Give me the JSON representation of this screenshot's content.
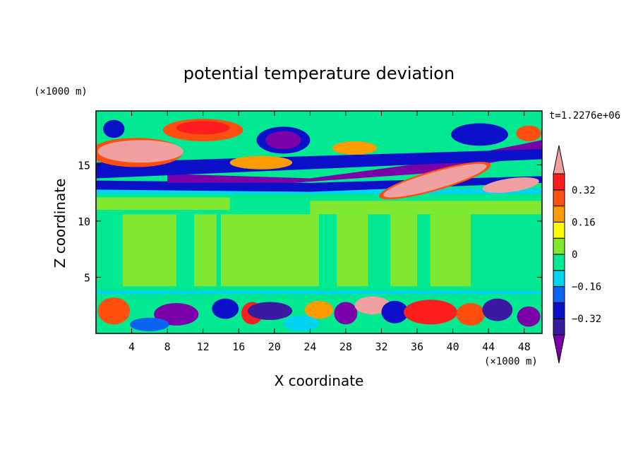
{
  "chart_data": {
    "type": "heatmap",
    "title": "potential temperature deviation",
    "xlabel": "X coordinate",
    "ylabel": "Z coordinate",
    "x_unit": "(×1000 m)",
    "y_unit": "(×1000 m)",
    "time_label": "t=1.2276e+06",
    "xlim": [
      0,
      50
    ],
    "ylim": [
      0,
      19.8
    ],
    "x_ticks": [
      "4",
      "8",
      "12",
      "16",
      "20",
      "24",
      "28",
      "32",
      "36",
      "40",
      "44",
      "48"
    ],
    "y_ticks": [
      "5",
      "10",
      "15"
    ],
    "colorbar": {
      "levels": [
        -0.4,
        -0.32,
        -0.24,
        -0.16,
        -0.08,
        0,
        0.08,
        0.16,
        0.24,
        0.32,
        0.4
      ],
      "tick_labels": [
        "0.32",
        "0.16",
        "0",
        "−0.16",
        "−0.32"
      ],
      "colors": [
        "#7a00a8",
        "#3a1aa0",
        "#0a10c8",
        "#0a64f0",
        "#00d4f0",
        "#00e890",
        "#80e830",
        "#ffff00",
        "#ff9c00",
        "#ff5010",
        "#ff1e1e",
        "#f0a0a0"
      ]
    }
  }
}
